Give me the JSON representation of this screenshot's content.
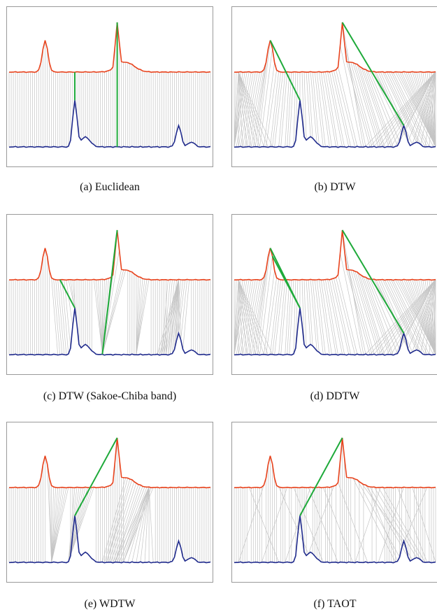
{
  "figure": {
    "panels": [
      {
        "id": "a",
        "caption": "(a)  Euclidean"
      },
      {
        "id": "b",
        "caption": "(b)  DTW"
      },
      {
        "id": "c",
        "caption": "(c)  DTW (Sakoe-Chiba band)"
      },
      {
        "id": "d",
        "caption": "(d)  DDTW"
      },
      {
        "id": "e",
        "caption": "(e)  WDTW"
      },
      {
        "id": "f",
        "caption": "(f)  TAOT"
      }
    ]
  },
  "colors": {
    "top_series": "#e8431d",
    "bottom_series": "#1f2a8c",
    "alignment_lines": "#c4c4c4",
    "highlight": "#1eaa3a"
  }
}
